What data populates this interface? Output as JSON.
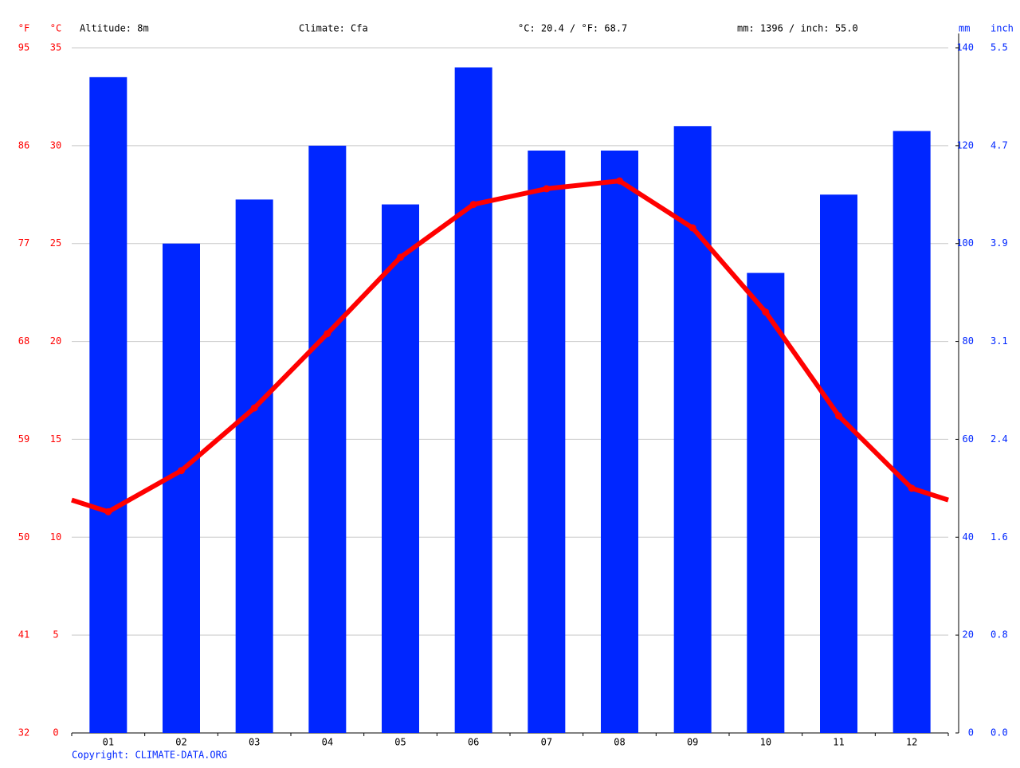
{
  "chart_data": {
    "type": "bar",
    "annotations": [
      "Altitude: 8m",
      "Climate: Cfa",
      "°C: 20.4 / °F: 68.7",
      "mm: 1396 / inch: 55.0"
    ],
    "source": "Copyright: CLIMATE-DATA.ORG",
    "categories": [
      "01",
      "02",
      "03",
      "04",
      "05",
      "06",
      "07",
      "08",
      "09",
      "10",
      "11",
      "12"
    ],
    "series": [
      {
        "type": "bar",
        "axis": "y2",
        "color": "#0026ff",
        "values": [
          134,
          100,
          109,
          120,
          108,
          136,
          119,
          119,
          124,
          94,
          110,
          123
        ]
      },
      {
        "type": "line",
        "axis": "y",
        "color": "#ff0000",
        "values": [
          11.3,
          13.4,
          16.6,
          20.4,
          24.3,
          27.0,
          27.8,
          28.2,
          25.8,
          21.5,
          16.2,
          12.5
        ]
      }
    ],
    "y_unit": "°C",
    "ylim": [
      0,
      35
    ],
    "yticks": [
      0,
      5,
      10,
      15,
      20,
      25,
      30,
      35
    ],
    "y3_unit": "°F",
    "y3lim": [
      32,
      95
    ],
    "y3ticks": [
      32,
      41,
      50,
      59,
      68,
      77,
      86,
      95
    ],
    "y2_unit": "mm",
    "y2lim": [
      0,
      140
    ],
    "y2ticks": [
      0,
      20,
      40,
      60,
      80,
      100,
      120,
      140
    ],
    "y4_unit": "inch",
    "y4lim": [
      0,
      5.5118
    ],
    "y4ticks": [
      {
        "value": 0,
        "label": "0.0"
      },
      {
        "value": 0.7874,
        "label": "0.8"
      },
      {
        "value": 1.5748,
        "label": "1.6"
      },
      {
        "value": 2.3622,
        "label": "2.4"
      },
      {
        "value": 3.1496,
        "label": "3.1"
      },
      {
        "value": 3.937,
        "label": "3.9"
      },
      {
        "value": 4.7244,
        "label": "4.7"
      },
      {
        "value": 5.5118,
        "label": "5.5"
      }
    ],
    "grid": true
  }
}
